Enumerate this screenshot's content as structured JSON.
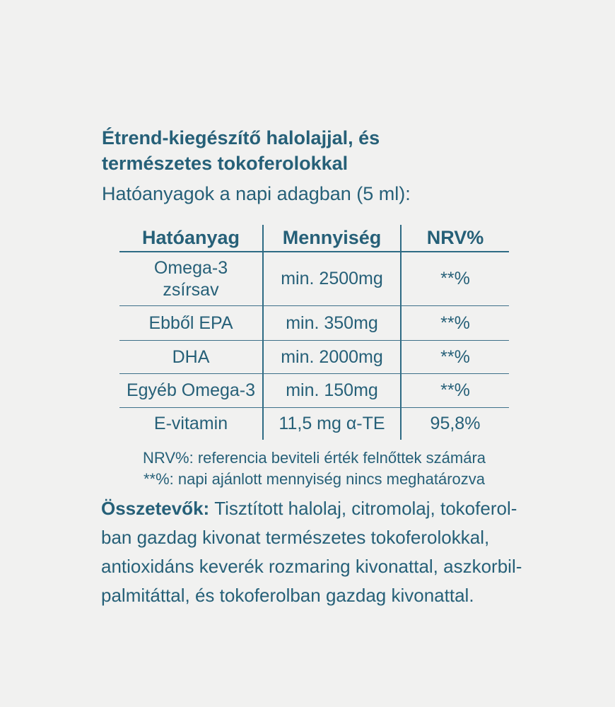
{
  "page": {
    "background": "#f1f1f0",
    "text_color": "#266078",
    "line_color": "#2e6b84",
    "line_soft_color": "#3d7089"
  },
  "title": {
    "lines": [
      "Étrend-kiegészítő halolajjal, és",
      "természetes tokoferolokkal"
    ]
  },
  "subtitle": "Hatóanyagok a napi adagban (5 ml):",
  "table": {
    "headers": [
      "Hatóanyag",
      "Mennyiség",
      "NRV%"
    ],
    "rows": [
      {
        "name": "Omega-3 zsírsav",
        "amount": "min. 2500mg",
        "nrv": "**%"
      },
      {
        "name": "Ebből EPA",
        "amount": "min. 350mg",
        "nrv": "**%"
      },
      {
        "name": "DHA",
        "amount": "min. 2000mg",
        "nrv": "**%"
      },
      {
        "name": "Egyéb Omega-3",
        "amount": "min. 150mg",
        "nrv": "**%"
      },
      {
        "name": "E-vitamin",
        "amount": "11,5 mg α-TE",
        "nrv": "95,8%"
      }
    ]
  },
  "notes": [
    "NRV%: referencia beviteli érték felnőttek számára",
    "**%: napi ajánlott mennyiség nincs meghatározva"
  ],
  "ingredients": {
    "label": "Összetevők:",
    "line1_rest": "Tisztított halolaj, citromolaj, tokoferol-",
    "lines": [
      "ban gazdag kivonat természetes tokoferolokkal,",
      "antioxidáns keverék rozmaring kivonattal, aszkorbil-",
      "palmitáttal, és tokoferolban gazdag kivonattal."
    ]
  }
}
